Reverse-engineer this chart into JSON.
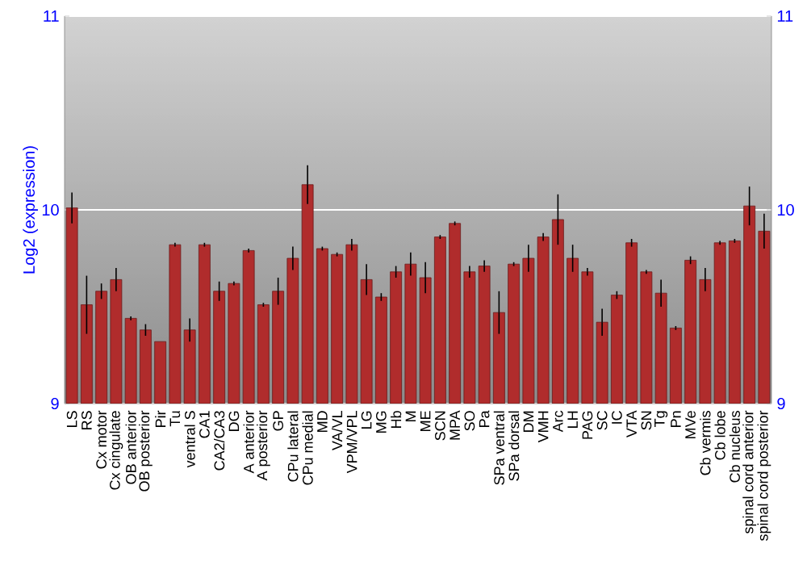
{
  "chart_data": {
    "type": "bar",
    "ylabel": "Log2 (expression)",
    "categories": [
      "LS",
      "RS",
      "Cx motor",
      "Cx cingulate",
      "OB anterior",
      "OB posterior",
      "Pir",
      "Tu",
      "ventral S",
      "CA1",
      "CA2/CA3",
      "DG",
      "A anterior",
      "A posterior",
      "GP",
      "CPu lateral",
      "CPu medial",
      "MD",
      "VA/VL",
      "VPM/VPL",
      "LG",
      "MG",
      "Hb",
      "M",
      "ME",
      "SCN",
      "MPA",
      "SO",
      "Pa",
      "SPa ventral",
      "SPa dorsal",
      "DM",
      "VMH",
      "Arc",
      "LH",
      "PAG",
      "SC",
      "IC",
      "VTA",
      "SN",
      "Tg",
      "Pn",
      "MVe",
      "Cb vermis",
      "Cb lobe",
      "Cb nucleus",
      "spinal cord anterior",
      "spinal cord posterior"
    ],
    "values": [
      10.01,
      9.51,
      9.58,
      9.64,
      9.44,
      9.38,
      9.32,
      9.82,
      9.38,
      9.82,
      9.58,
      9.62,
      9.79,
      9.51,
      9.58,
      9.75,
      10.13,
      9.8,
      9.77,
      9.82,
      9.64,
      9.55,
      9.68,
      9.72,
      9.65,
      9.86,
      9.93,
      9.68,
      9.71,
      9.47,
      9.72,
      9.75,
      9.86,
      9.95,
      9.75,
      9.68,
      9.42,
      9.56,
      9.83,
      9.68,
      9.57,
      9.39,
      9.74,
      9.64,
      9.83,
      9.84,
      10.02,
      9.89
    ],
    "errors": [
      0.08,
      0.15,
      0.04,
      0.06,
      0.01,
      0.03,
      null,
      0.01,
      0.06,
      0.01,
      0.05,
      0.01,
      0.01,
      0.01,
      0.07,
      0.06,
      0.1,
      0.01,
      0.01,
      0.03,
      0.08,
      0.02,
      0.03,
      0.06,
      0.08,
      0.01,
      0.01,
      0.03,
      0.03,
      0.11,
      0.01,
      0.07,
      0.02,
      0.13,
      0.07,
      0.02,
      0.07,
      0.02,
      0.02,
      0.01,
      0.07,
      0.01,
      0.02,
      0.06,
      0.01,
      0.01,
      0.1,
      0.09
    ],
    "color": "#b02c2c",
    "ylim": [
      9,
      11
    ],
    "yticks": [
      9,
      10,
      11
    ],
    "y2lim": [
      9,
      11
    ],
    "y2ticks": [
      9,
      10,
      11
    ],
    "grid": "y"
  }
}
